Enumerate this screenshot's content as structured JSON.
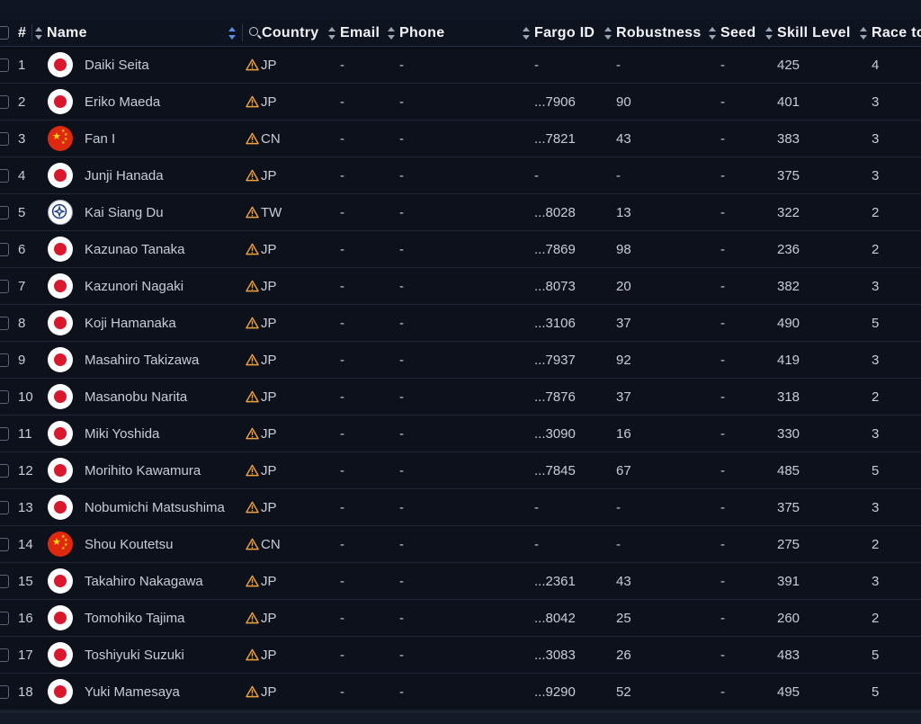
{
  "table": {
    "headers": {
      "index": "#",
      "name": "Name",
      "country": "Country",
      "email": "Email",
      "phone": "Phone",
      "fargo_id": "Fargo ID",
      "robustness": "Robustness",
      "seed": "Seed",
      "skill_level": "Skill Level",
      "race_to": "Race to"
    },
    "rows": [
      {
        "index": "1",
        "name": "Daiki Seita",
        "flag": "jp",
        "country": "JP",
        "email": "-",
        "phone": "-",
        "fargo_id": "-",
        "robustness": "-",
        "seed": "-",
        "skill_level": "425",
        "race_to": "4"
      },
      {
        "index": "2",
        "name": "Eriko Maeda",
        "flag": "jp",
        "country": "JP",
        "email": "-",
        "phone": "-",
        "fargo_id": "...7906",
        "robustness": "90",
        "seed": "-",
        "skill_level": "401",
        "race_to": "3"
      },
      {
        "index": "3",
        "name": "Fan I",
        "flag": "cn",
        "country": "CN",
        "email": "-",
        "phone": "-",
        "fargo_id": "...7821",
        "robustness": "43",
        "seed": "-",
        "skill_level": "383",
        "race_to": "3"
      },
      {
        "index": "4",
        "name": "Junji Hanada",
        "flag": "jp",
        "country": "JP",
        "email": "-",
        "phone": "-",
        "fargo_id": "-",
        "robustness": "-",
        "seed": "-",
        "skill_level": "375",
        "race_to": "3"
      },
      {
        "index": "5",
        "name": "Kai Siang Du",
        "flag": "tw",
        "country": "TW",
        "email": "-",
        "phone": "-",
        "fargo_id": "...8028",
        "robustness": "13",
        "seed": "-",
        "skill_level": "322",
        "race_to": "2"
      },
      {
        "index": "6",
        "name": "Kazunao Tanaka",
        "flag": "jp",
        "country": "JP",
        "email": "-",
        "phone": "-",
        "fargo_id": "...7869",
        "robustness": "98",
        "seed": "-",
        "skill_level": "236",
        "race_to": "2"
      },
      {
        "index": "7",
        "name": "Kazunori Nagaki",
        "flag": "jp",
        "country": "JP",
        "email": "-",
        "phone": "-",
        "fargo_id": "...8073",
        "robustness": "20",
        "seed": "-",
        "skill_level": "382",
        "race_to": "3"
      },
      {
        "index": "8",
        "name": "Koji Hamanaka",
        "flag": "jp",
        "country": "JP",
        "email": "-",
        "phone": "-",
        "fargo_id": "...3106",
        "robustness": "37",
        "seed": "-",
        "skill_level": "490",
        "race_to": "5"
      },
      {
        "index": "9",
        "name": "Masahiro Takizawa",
        "flag": "jp",
        "country": "JP",
        "email": "-",
        "phone": "-",
        "fargo_id": "...7937",
        "robustness": "92",
        "seed": "-",
        "skill_level": "419",
        "race_to": "3"
      },
      {
        "index": "10",
        "name": "Masanobu Narita",
        "flag": "jp",
        "country": "JP",
        "email": "-",
        "phone": "-",
        "fargo_id": "...7876",
        "robustness": "37",
        "seed": "-",
        "skill_level": "318",
        "race_to": "2"
      },
      {
        "index": "11",
        "name": "Miki Yoshida",
        "flag": "jp",
        "country": "JP",
        "email": "-",
        "phone": "-",
        "fargo_id": "...3090",
        "robustness": "16",
        "seed": "-",
        "skill_level": "330",
        "race_to": "3"
      },
      {
        "index": "12",
        "name": "Morihito Kawamura",
        "flag": "jp",
        "country": "JP",
        "email": "-",
        "phone": "-",
        "fargo_id": "...7845",
        "robustness": "67",
        "seed": "-",
        "skill_level": "485",
        "race_to": "5"
      },
      {
        "index": "13",
        "name": "Nobumichi Matsushima",
        "flag": "jp",
        "country": "JP",
        "email": "-",
        "phone": "-",
        "fargo_id": "-",
        "robustness": "-",
        "seed": "-",
        "skill_level": "375",
        "race_to": "3"
      },
      {
        "index": "14",
        "name": "Shou Koutetsu",
        "flag": "cn",
        "country": "CN",
        "email": "-",
        "phone": "-",
        "fargo_id": "-",
        "robustness": "-",
        "seed": "-",
        "skill_level": "275",
        "race_to": "2"
      },
      {
        "index": "15",
        "name": "Takahiro Nakagawa",
        "flag": "jp",
        "country": "JP",
        "email": "-",
        "phone": "-",
        "fargo_id": "...2361",
        "robustness": "43",
        "seed": "-",
        "skill_level": "391",
        "race_to": "3"
      },
      {
        "index": "16",
        "name": "Tomohiko Tajima",
        "flag": "jp",
        "country": "JP",
        "email": "-",
        "phone": "-",
        "fargo_id": "...8042",
        "robustness": "25",
        "seed": "-",
        "skill_level": "260",
        "race_to": "2"
      },
      {
        "index": "17",
        "name": "Toshiyuki Suzuki",
        "flag": "jp",
        "country": "JP",
        "email": "-",
        "phone": "-",
        "fargo_id": "...3083",
        "robustness": "26",
        "seed": "-",
        "skill_level": "483",
        "race_to": "5"
      },
      {
        "index": "18",
        "name": "Yuki Mamesaya",
        "flag": "jp",
        "country": "JP",
        "email": "-",
        "phone": "-",
        "fargo_id": "...9290",
        "robustness": "52",
        "seed": "-",
        "skill_level": "495",
        "race_to": "5"
      }
    ]
  },
  "colors": {
    "background": "#0c111c",
    "warning": "#f0a23a",
    "sort_active": "#5a8ee6"
  },
  "icons": {
    "warning": "warning-triangle-icon",
    "search": "search-icon",
    "sort": "sort-arrows-icon"
  }
}
